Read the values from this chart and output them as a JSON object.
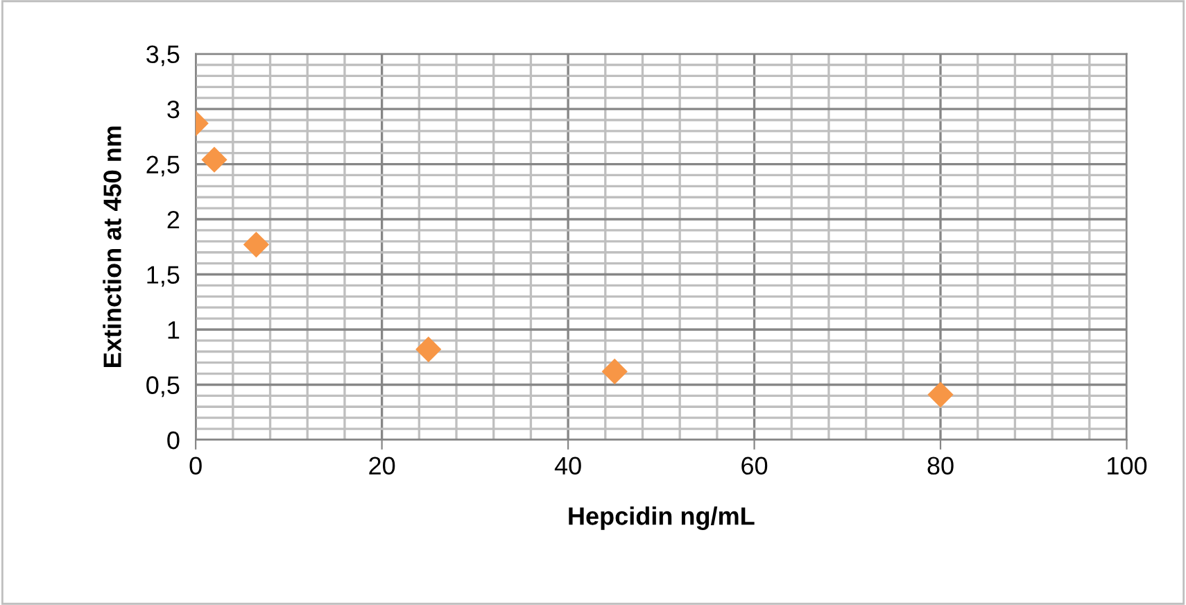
{
  "chart_data": {
    "type": "scatter",
    "xlabel": "Hepcidin ng/mL",
    "ylabel": "Extinction at 450 nm",
    "x": [
      0,
      2,
      6.5,
      25,
      45,
      80
    ],
    "values": [
      2.87,
      2.54,
      1.77,
      0.82,
      0.62,
      0.41
    ],
    "color": "#f79646",
    "marker": "diamond",
    "grid": true,
    "xlim": [
      0,
      100
    ],
    "xticks": [
      0,
      20,
      40,
      60,
      80,
      100
    ],
    "ylim": [
      0,
      3.5
    ],
    "yticks": [
      0,
      {
        "value": 0.5,
        "label": "0,5"
      },
      1,
      {
        "value": 1.5,
        "label": "1,5"
      },
      2,
      {
        "value": 2.5,
        "label": "2,5"
      },
      3,
      {
        "value": 3.5,
        "label": "3,5"
      }
    ]
  }
}
